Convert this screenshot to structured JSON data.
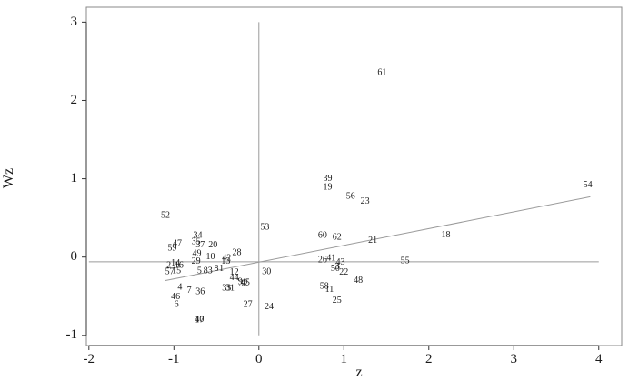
{
  "chart_data": {
    "type": "scatter",
    "xlabel": "z",
    "ylabel": "Wz",
    "xlim": [
      -2.0,
      4.0
    ],
    "ylim": [
      -1.0,
      3.0
    ],
    "xticks": [
      -2,
      -1,
      0,
      1,
      2,
      3,
      4
    ],
    "yticks": [
      -1,
      0,
      1,
      2,
      3
    ],
    "xtick_labels": [
      "-2",
      "-1",
      "0",
      "1",
      "2",
      "3",
      "4"
    ],
    "ytick_labels": [
      "-1",
      "0",
      "1",
      "2",
      "3"
    ],
    "frame_xlim": [
      -2.03,
      4.27
    ],
    "frame_ylim": [
      -1.13,
      3.19
    ],
    "reference_lines": {
      "x": 0,
      "y": -0.06
    },
    "regression_line": {
      "x": [
        -1.1,
        3.9
      ],
      "y": [
        -0.3,
        0.77
      ]
    },
    "points": [
      {
        "label": "61",
        "x": 1.45,
        "y": 2.35
      },
      {
        "label": "54",
        "x": 3.87,
        "y": 0.92
      },
      {
        "label": "39",
        "x": 0.81,
        "y": 1.0
      },
      {
        "label": "19",
        "x": 0.81,
        "y": 0.89
      },
      {
        "label": "56",
        "x": 1.08,
        "y": 0.77
      },
      {
        "label": "23",
        "x": 1.25,
        "y": 0.71
      },
      {
        "label": "52",
        "x": -1.1,
        "y": 0.53
      },
      {
        "label": "53",
        "x": 0.07,
        "y": 0.38
      },
      {
        "label": "60",
        "x": 0.75,
        "y": 0.27
      },
      {
        "label": "62",
        "x": 0.92,
        "y": 0.25
      },
      {
        "label": "21",
        "x": 1.34,
        "y": 0.21
      },
      {
        "label": "18",
        "x": 2.2,
        "y": 0.28
      },
      {
        "label": "34",
        "x": -0.72,
        "y": 0.27
      },
      {
        "label": "47",
        "x": -0.96,
        "y": 0.17
      },
      {
        "label": "59",
        "x": -1.02,
        "y": 0.11
      },
      {
        "label": "35",
        "x": -0.74,
        "y": 0.19
      },
      {
        "label": "37",
        "x": -0.69,
        "y": 0.15
      },
      {
        "label": "20",
        "x": -0.54,
        "y": 0.15
      },
      {
        "label": "28",
        "x": -0.26,
        "y": 0.05
      },
      {
        "label": "49",
        "x": -0.73,
        "y": 0.04
      },
      {
        "label": "10",
        "x": -0.57,
        "y": 0.0
      },
      {
        "label": "42",
        "x": -0.38,
        "y": -0.02
      },
      {
        "label": "29",
        "x": -0.74,
        "y": -0.06
      },
      {
        "label": "13",
        "x": -0.39,
        "y": -0.06
      },
      {
        "label": "2",
        "x": -1.06,
        "y": -0.11
      },
      {
        "label": "14",
        "x": -0.98,
        "y": -0.08
      },
      {
        "label": "16",
        "x": -0.94,
        "y": -0.11
      },
      {
        "label": "57",
        "x": -1.05,
        "y": -0.19
      },
      {
        "label": "15",
        "x": -0.97,
        "y": -0.18
      },
      {
        "label": "5",
        "x": -0.7,
        "y": -0.18
      },
      {
        "label": "83",
        "x": -0.6,
        "y": -0.18
      },
      {
        "label": "8",
        "x": -0.5,
        "y": -0.15
      },
      {
        "label": "1",
        "x": -0.44,
        "y": -0.15
      },
      {
        "label": "12",
        "x": -0.29,
        "y": -0.2
      },
      {
        "label": "44",
        "x": -0.29,
        "y": -0.27
      },
      {
        "label": "9",
        "x": -0.22,
        "y": -0.32
      },
      {
        "label": "45",
        "x": -0.16,
        "y": -0.33
      },
      {
        "label": "32",
        "x": -0.18,
        "y": -0.34
      },
      {
        "label": "30",
        "x": 0.09,
        "y": -0.19
      },
      {
        "label": "4",
        "x": -0.93,
        "y": -0.39
      },
      {
        "label": "7",
        "x": -0.82,
        "y": -0.43
      },
      {
        "label": "36",
        "x": -0.69,
        "y": -0.45
      },
      {
        "label": "33",
        "x": -0.38,
        "y": -0.4
      },
      {
        "label": "31",
        "x": -0.34,
        "y": -0.4
      },
      {
        "label": "46",
        "x": -0.98,
        "y": -0.51
      },
      {
        "label": "6",
        "x": -0.97,
        "y": -0.61
      },
      {
        "label": "27",
        "x": -0.13,
        "y": -0.61
      },
      {
        "label": "24",
        "x": 0.12,
        "y": -0.64
      },
      {
        "label": "40",
        "x": -0.7,
        "y": -0.8
      },
      {
        "label": "17",
        "x": -0.7,
        "y": -0.81
      },
      {
        "label": "26",
        "x": 0.75,
        "y": -0.04
      },
      {
        "label": "41",
        "x": 0.85,
        "y": -0.02
      },
      {
        "label": "43",
        "x": 0.96,
        "y": -0.07
      },
      {
        "label": "3",
        "x": 0.92,
        "y": -0.13
      },
      {
        "label": "50",
        "x": 0.9,
        "y": -0.15
      },
      {
        "label": "22",
        "x": 1.0,
        "y": -0.2
      },
      {
        "label": "55",
        "x": 1.72,
        "y": -0.05
      },
      {
        "label": "48",
        "x": 1.17,
        "y": -0.3
      },
      {
        "label": "58",
        "x": 0.77,
        "y": -0.38
      },
      {
        "label": "11",
        "x": 0.83,
        "y": -0.42
      },
      {
        "label": "25",
        "x": 0.92,
        "y": -0.56
      }
    ]
  }
}
